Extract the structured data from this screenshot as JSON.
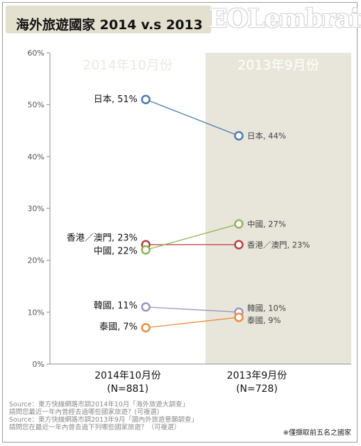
{
  "title": "海外旅遊國家 2014 v.s 2013",
  "watermark": "EOLembrain",
  "chart_data": {
    "type": "line",
    "categories": [
      "2014年10月份",
      "2013年9月份"
    ],
    "category_sublabels": [
      "(N=881)",
      "(N=728)"
    ],
    "column_headers": [
      "2014年10月份",
      "2013年9月份"
    ],
    "ylim": [
      0,
      60
    ],
    "yticks": [
      "0%",
      "10%",
      "20%",
      "30%",
      "40%",
      "50%",
      "60%"
    ],
    "grid": false,
    "series": [
      {
        "name": "日本",
        "values": [
          51,
          44
        ],
        "color": "#4a7ab5",
        "labels": [
          "日本, 51%",
          "日本, 44%"
        ]
      },
      {
        "name": "香港/澳門",
        "values": [
          23,
          23
        ],
        "color": "#b93e3e",
        "labels": [
          "香港／澳門, 23%",
          "香港／澳門, 23%"
        ]
      },
      {
        "name": "中國",
        "values": [
          22,
          27
        ],
        "color": "#8db553",
        "labels": [
          "中國, 22%",
          "中國, 27%"
        ]
      },
      {
        "name": "韓國",
        "values": [
          11,
          10
        ],
        "color": "#9c93bf",
        "labels": [
          "韓國, 11%",
          "韓國, 10%"
        ]
      },
      {
        "name": "泰國",
        "values": [
          7,
          9
        ],
        "color": "#ef8b3a",
        "labels": [
          "泰國, 7%",
          "泰國, 9%"
        ]
      }
    ]
  },
  "source_lines": [
    "Source：東方快線網路市調2014年10月「海外旅遊大調查」",
    "請問您最近一年內曾經去過哪些國家旅遊？(可複選)",
    "Source：東方快線網路市調2013年9月「國內外旅遊意願調查」",
    "請問您在最近一年內曾去過下列哪些國家旅遊？（可複選）"
  ],
  "note": "※僅擷取前五名之國家"
}
